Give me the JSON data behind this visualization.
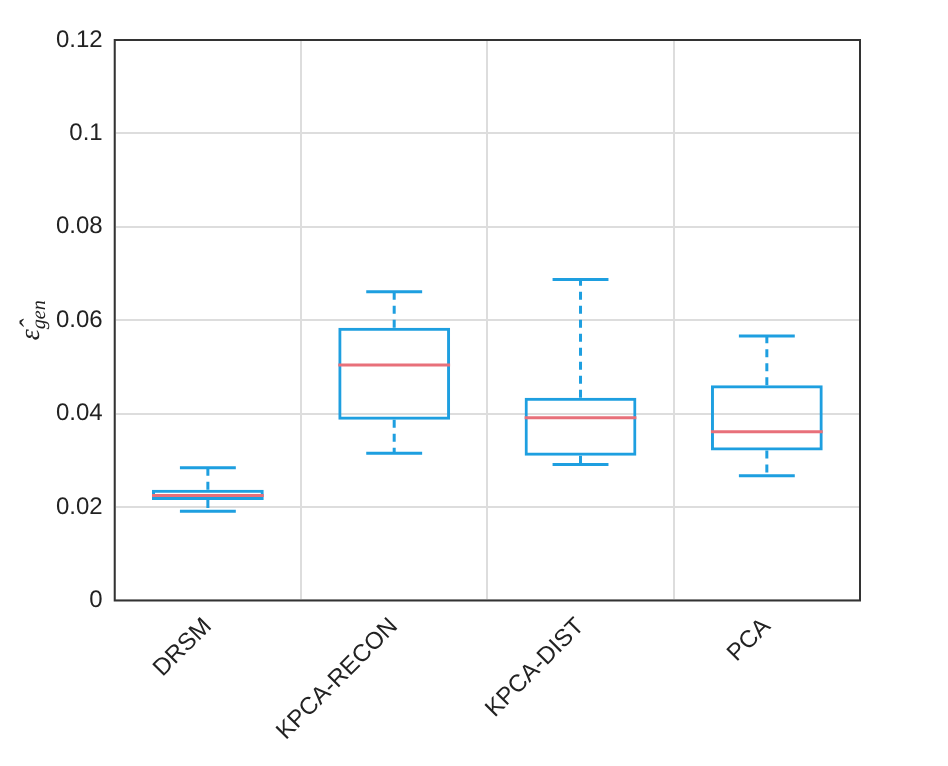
{
  "chart_data": {
    "type": "box",
    "ylabel": "ε̂$_{gen}$",
    "categories": [
      "DRSM",
      "KPCA-RECON",
      "KPCA-DIST",
      "PCA"
    ],
    "series": [
      {
        "color": "#1e9fe0",
        "boxes": [
          {
            "low": 0.0191,
            "q1": 0.0215,
            "median": 0.0225,
            "q3": 0.0237,
            "high": 0.0284
          },
          {
            "low": 0.0315,
            "q1": 0.0387,
            "median": 0.0504,
            "q3": 0.0584,
            "high": 0.0661
          },
          {
            "low": 0.0291,
            "q1": 0.031,
            "median": 0.0391,
            "q3": 0.0434,
            "high": 0.0687
          },
          {
            "low": 0.0267,
            "q1": 0.0321,
            "median": 0.0361,
            "q3": 0.0461,
            "high": 0.0566
          }
        ]
      }
    ],
    "ylim": [
      0,
      0.12
    ],
    "yticks": [
      0,
      0.02,
      0.04,
      0.06,
      0.08,
      0.1,
      0.12
    ],
    "grid": true,
    "legend": false
  }
}
